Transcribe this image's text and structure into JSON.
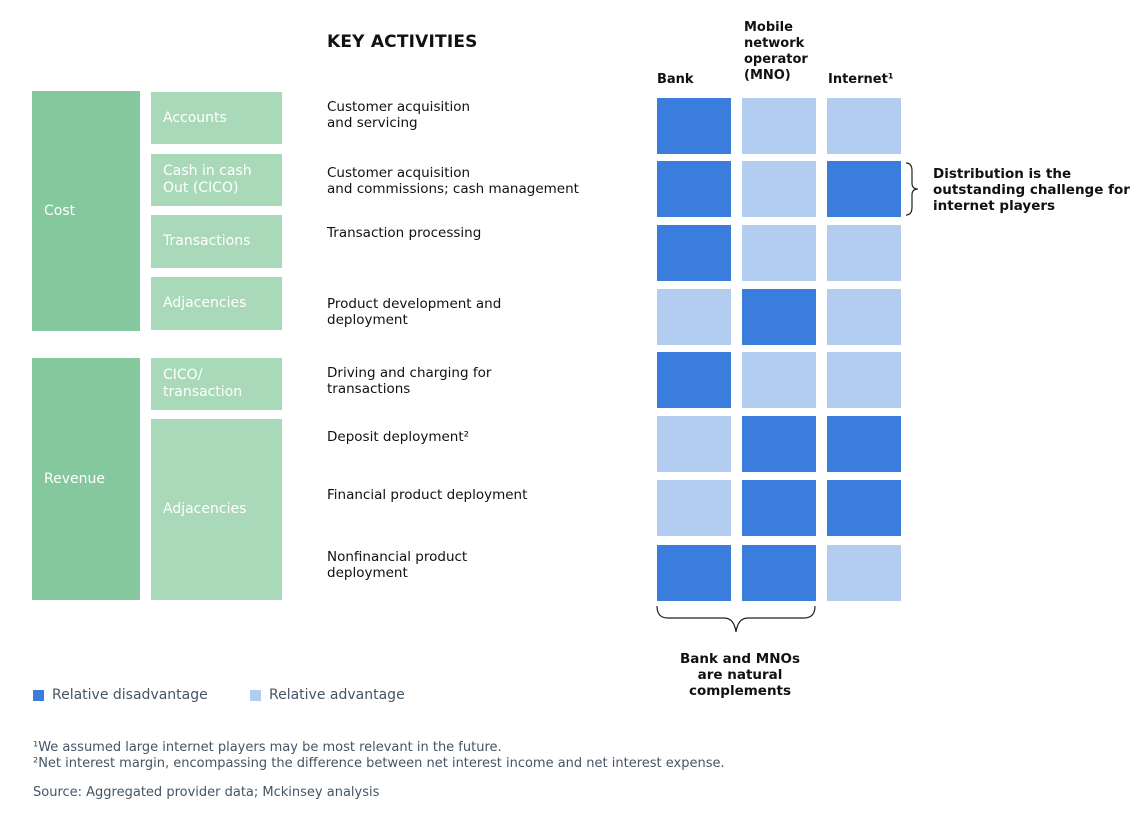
{
  "title": "KEY ACTIVITIES",
  "groups": [
    {
      "label": "Cost"
    },
    {
      "label": "Revenue"
    }
  ],
  "subgroups": [
    {
      "label": "Accounts"
    },
    {
      "label": "Cash in cash\nOut (CICO)"
    },
    {
      "label": "Transactions"
    },
    {
      "label": "Adjacencies"
    },
    {
      "label": "CICO/\ntransaction"
    },
    {
      "label": "Adjacencies"
    }
  ],
  "activities": [
    "Customer acquisition\nand servicing",
    "Customer acquisition\nand commissions; cash management",
    "Transaction processing",
    "Product development and\ndeployment",
    "Driving and charging for\ntransactions",
    "Deposit deployment²",
    "Financial product deployment",
    "Nonfinancial product\ndeployment"
  ],
  "columns": [
    {
      "label": "Bank"
    },
    {
      "label": "Mobile\nnetwork\noperator\n(MNO)"
    },
    {
      "label": "Internet¹"
    }
  ],
  "matrix": [
    [
      "disadvantage",
      "advantage",
      "advantage"
    ],
    [
      "disadvantage",
      "advantage",
      "disadvantage"
    ],
    [
      "disadvantage",
      "advantage",
      "advantage"
    ],
    [
      "advantage",
      "disadvantage",
      "advantage"
    ],
    [
      "disadvantage",
      "advantage",
      "advantage"
    ],
    [
      "advantage",
      "disadvantage",
      "disadvantage"
    ],
    [
      "advantage",
      "disadvantage",
      "disadvantage"
    ],
    [
      "disadvantage",
      "disadvantage",
      "advantage"
    ]
  ],
  "colors": {
    "disadvantage": "#3b7ddd",
    "advantage": "#b3cdf0",
    "group": "#86c89d",
    "subgroup": "#a9d9b8"
  },
  "callouts": {
    "distribution": "Distribution is the\noutstanding challenge for\ninternet players",
    "complements": "Bank and MNOs\nare natural\ncomplements"
  },
  "legend": {
    "disadvantage": "Relative disadvantage",
    "advantage": "Relative advantage"
  },
  "footnotes": {
    "note1": "¹We assumed large internet players may be most relevant in the future.",
    "note2": "²Net interest margin, encompassing the difference between net interest income and net interest expense.",
    "source": "Source: Aggregated provider data; Mckinsey analysis"
  }
}
